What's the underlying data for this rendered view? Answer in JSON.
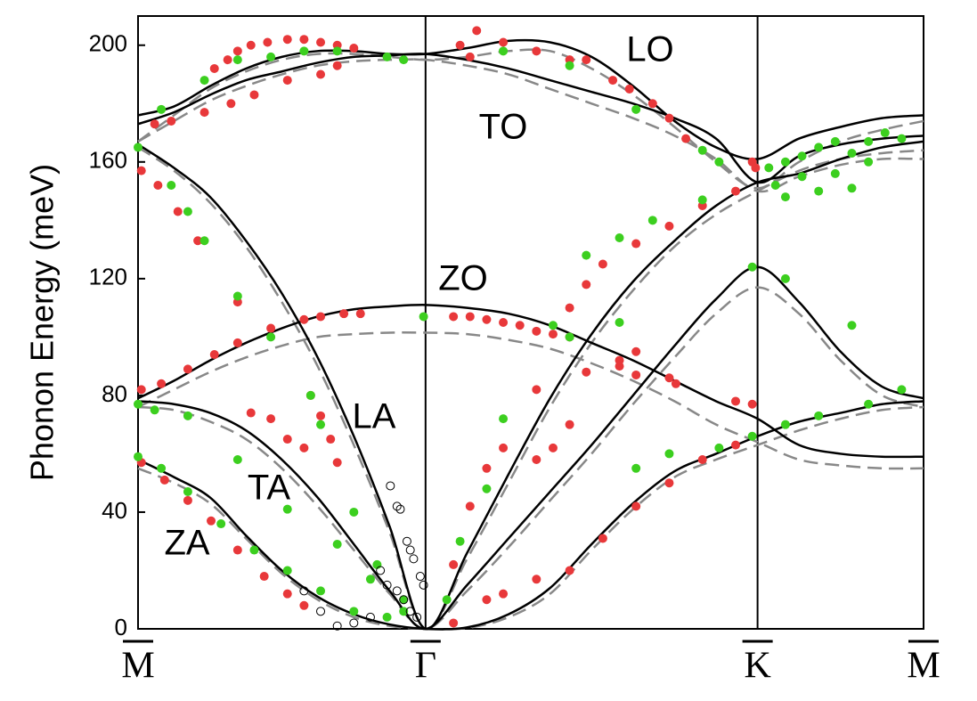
{
  "chart_data": {
    "type": "line",
    "y_label": "Phonon Energy (meV)",
    "annotations": [
      "LO",
      "TO",
      "ZO",
      "LA",
      "TA",
      "ZA"
    ],
    "ylim": [
      0,
      210
    ],
    "yticks": [
      0,
      40,
      80,
      120,
      160,
      200
    ],
    "xlim": [
      0,
      2.366
    ],
    "xticks": [
      {
        "value": 0,
        "label": "M"
      },
      {
        "value": 0.866,
        "label": "Γ"
      },
      {
        "value": 1.866,
        "label": "K"
      },
      {
        "value": 2.366,
        "label": "M"
      }
    ],
    "x": [
      0,
      0.108,
      0.217,
      0.325,
      0.433,
      0.541,
      0.65,
      0.758,
      0.866,
      0.991,
      1.116,
      1.241,
      1.366,
      1.491,
      1.616,
      1.741,
      1.866,
      1.991,
      2.116,
      2.241,
      2.366
    ],
    "series": [
      {
        "type": "line",
        "color": "#888888",
        "dashed": true,
        "values": [
          55,
          50,
          43,
          31,
          19,
          10,
          4,
          1,
          0,
          0.3,
          4,
          12,
          27,
          41,
          52,
          58,
          63,
          68,
          72,
          75,
          76
        ]
      },
      {
        "type": "line",
        "color": "#888888",
        "dashed": true,
        "values": [
          76,
          75,
          71,
          65,
          55,
          42,
          27,
          12,
          0,
          13,
          28,
          44,
          60,
          77,
          93,
          108,
          117,
          108,
          92,
          80,
          76
        ]
      },
      {
        "type": "line",
        "color": "#888888",
        "dashed": true,
        "values": [
          76,
          82,
          88,
          93,
          97,
          100,
          101,
          101.5,
          101.5,
          101,
          99,
          96,
          91,
          85,
          78,
          70,
          64,
          58,
          56,
          55,
          55
        ]
      },
      {
        "type": "line",
        "color": "#888888",
        "dashed": true,
        "values": [
          165,
          157,
          146,
          131,
          112,
          90,
          63,
          33,
          0,
          24,
          50,
          76,
          98,
          116,
          131,
          142,
          150,
          157,
          161,
          163,
          164
        ]
      },
      {
        "type": "line",
        "color": "#888888",
        "dashed": true,
        "values": [
          167,
          174,
          181,
          186,
          190,
          193,
          194.5,
          195,
          195,
          193,
          190,
          185,
          180,
          175,
          169,
          161,
          150,
          155,
          159,
          161,
          161
        ]
      },
      {
        "type": "line",
        "color": "#888888",
        "dashed": true,
        "values": [
          167,
          176,
          185,
          191,
          195,
          197,
          197,
          196,
          195,
          196,
          198,
          198,
          192,
          183,
          172,
          160,
          151,
          160,
          167,
          171,
          174
        ]
      },
      {
        "type": "line",
        "color": "#000000",
        "values": [
          58,
          52,
          45,
          32,
          20,
          11,
          5,
          1.5,
          0,
          0.5,
          5,
          14,
          29,
          43,
          54,
          60,
          66,
          71,
          74,
          77,
          78
        ]
      },
      {
        "type": "line",
        "color": "#000000",
        "values": [
          78,
          77,
          74,
          68,
          58,
          45,
          29,
          13,
          0,
          15,
          31,
          47,
          63,
          80,
          97,
          113,
          124,
          112,
          95,
          83,
          79
        ]
      },
      {
        "type": "line",
        "color": "#000000",
        "values": [
          79,
          85,
          92,
          98,
          103,
          107,
          109.5,
          110.5,
          111,
          110,
          108,
          104,
          98,
          92,
          85,
          78,
          72,
          63,
          60,
          59,
          59
        ]
      },
      {
        "type": "line",
        "color": "#000000",
        "values": [
          166,
          158,
          148,
          133,
          115,
          93,
          66,
          35,
          0,
          26,
          53,
          79,
          101,
          119,
          133,
          145,
          153,
          156,
          161,
          165,
          167
        ]
      },
      {
        "type": "line",
        "color": "#000000",
        "values": [
          173,
          177,
          183,
          188,
          191,
          194,
          196,
          196.5,
          197,
          195,
          192,
          188,
          184,
          180,
          175,
          168,
          153,
          162,
          166,
          168,
          169
        ]
      },
      {
        "type": "line",
        "color": "#000000",
        "values": [
          176,
          179,
          186,
          192,
          196,
          198,
          198,
          197,
          197,
          199,
          201.5,
          201,
          196,
          186,
          174,
          165,
          161,
          168,
          172,
          175,
          176
        ]
      },
      {
        "type": "scatter",
        "color": "#e8383a",
        "filled": true,
        "x": [
          0.23,
          0.27,
          0.3,
          0.34,
          0.39,
          0.45,
          0.5,
          0.55,
          0.6,
          0.65,
          0.05,
          0.1,
          0.2,
          0.28,
          0.35,
          0.45,
          0.55,
          0.6,
          0.01,
          0.06,
          0.12,
          0.18,
          0.3,
          0.52,
          0.55,
          0.58,
          0.6,
          0.01,
          0.07,
          0.15,
          0.23,
          0.3,
          0.4,
          0.5,
          0.55,
          0.62,
          0.67,
          0.34,
          0.4,
          0.45,
          0.5,
          0.01,
          0.08,
          0.15,
          0.22,
          0.3,
          0.38,
          0.45,
          0.5,
          0.95,
          1.0,
          1.05,
          1.1,
          1.15,
          1.2,
          1.25,
          1.3,
          1.45,
          1.5,
          1.6,
          1.62,
          1.8,
          1.85,
          0.95,
          1.0,
          1.05,
          1.1,
          1.2,
          1.3,
          1.35,
          1.4,
          1.5,
          1.6,
          1.7,
          1.8,
          1.2,
          1.25,
          1.3,
          1.35,
          1.45,
          1.5,
          0.95,
          1.05,
          1.1,
          1.2,
          1.3,
          1.4,
          1.5,
          1.6,
          1.7,
          1.8,
          0.97,
          1.0,
          1.02,
          1.1,
          1.2,
          1.3,
          1.35,
          1.43,
          1.48,
          1.55,
          1.6,
          1.65,
          1.85,
          1.86
        ],
        "values": [
          192,
          195,
          198,
          200,
          201,
          202,
          202,
          201,
          200,
          199,
          173,
          174,
          177,
          180,
          183,
          188,
          190,
          193,
          157,
          152,
          143,
          133,
          112,
          80,
          73,
          65,
          57,
          82,
          84,
          89,
          94,
          98,
          103,
          106,
          107,
          108,
          108,
          74,
          72,
          65,
          62,
          57,
          51,
          44,
          37,
          27,
          18,
          12,
          8,
          107,
          107,
          106,
          105,
          104,
          102,
          101,
          100,
          90,
          87,
          86,
          84,
          78,
          77,
          22,
          42,
          55,
          62,
          82,
          110,
          118,
          125,
          132,
          138,
          145,
          150,
          58,
          62,
          70,
          88,
          92,
          95,
          2,
          10,
          12,
          17,
          20,
          31,
          42,
          50,
          58,
          63,
          200,
          196,
          205,
          201,
          198,
          195,
          195,
          188,
          185,
          180,
          175,
          168,
          160,
          158
        ]
      },
      {
        "type": "scatter",
        "color": "#3ccf1f",
        "filled": true,
        "x": [
          0.07,
          0.2,
          0.3,
          0.4,
          0.5,
          0.6,
          0.75,
          0.8,
          0.86,
          0.0,
          0.1,
          0.15,
          0.2,
          0.3,
          0.4,
          0.52,
          0.55,
          0.65,
          0.72,
          0.8,
          0.0,
          0.07,
          0.15,
          0.25,
          0.35,
          0.45,
          0.55,
          0.65,
          0.75,
          0.0,
          0.05,
          0.15,
          0.3,
          0.45,
          0.6,
          0.7,
          0.8,
          0.93,
          0.97,
          1.05,
          1.1,
          1.25,
          1.35,
          1.45,
          1.55,
          1.7,
          1.85,
          1.95,
          2.15,
          2.3,
          1.5,
          1.6,
          1.75,
          1.85,
          1.95,
          2.05,
          2.2,
          1.3,
          1.45,
          1.1,
          1.3,
          1.5,
          1.7,
          1.75,
          1.9,
          1.95,
          2.0,
          2.05,
          2.1,
          2.15,
          2.2,
          2.25,
          2.3,
          1.92,
          2.0,
          2.1,
          2.2,
          1.95,
          2.05,
          2.15
        ],
        "values": [
          178,
          188,
          195,
          196,
          198,
          198,
          196,
          195,
          107,
          165,
          152,
          143,
          133,
          114,
          100,
          80,
          70,
          40,
          22,
          10,
          59,
          55,
          47,
          36,
          27,
          20,
          13,
          6,
          4,
          77,
          75,
          73,
          58,
          41,
          29,
          17,
          6,
          10,
          30,
          48,
          72,
          104,
          128,
          134,
          140,
          147,
          124,
          120,
          104,
          82,
          55,
          60,
          62,
          66,
          70,
          73,
          77,
          100,
          105,
          198,
          193,
          178,
          164,
          160,
          158,
          160,
          162,
          165,
          167,
          163,
          167,
          170,
          168,
          152,
          155,
          156,
          160,
          148,
          150,
          151
        ]
      },
      {
        "type": "scatter",
        "color": "#000000",
        "filled": false,
        "x": [
          0.73,
          0.75,
          0.78,
          0.8,
          0.82,
          0.84,
          0.76,
          0.78,
          0.79,
          0.81,
          0.82,
          0.83,
          0.85,
          0.86,
          0.7,
          0.65,
          0.6,
          0.55,
          0.5
        ],
        "values": [
          20,
          15,
          13,
          10,
          6,
          4,
          49,
          42,
          41,
          30,
          27,
          24,
          18,
          15,
          4,
          2,
          1,
          6,
          13
        ]
      }
    ]
  }
}
